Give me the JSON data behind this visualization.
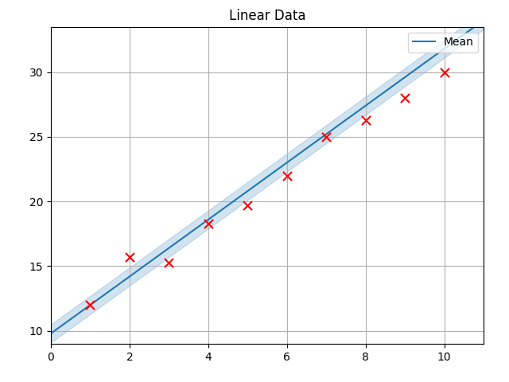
{
  "title": "Linear Data",
  "scatter_x": [
    1,
    2,
    3,
    4,
    5,
    6,
    7,
    8,
    9,
    10
  ],
  "scatter_y": [
    12.0,
    15.7,
    15.3,
    18.3,
    19.7,
    22.0,
    25.0,
    26.3,
    28.0,
    30.0
  ],
  "scatter_color": "red",
  "scatter_marker": "x",
  "scatter_markersize": 8,
  "line_x_start": 0,
  "line_x_end": 11,
  "line_slope": 2.2,
  "line_intercept": 9.8,
  "line_color": "#1f77b4",
  "line_label": "Mean",
  "fill_alpha": 0.2,
  "fill_color": "#1f77b4",
  "sigma": 0.7,
  "xlim": [
    0,
    11
  ],
  "ylim": [
    9,
    33.5
  ],
  "grid": true,
  "grid_color": "#b0b0b0",
  "legend_loc": "upper right"
}
